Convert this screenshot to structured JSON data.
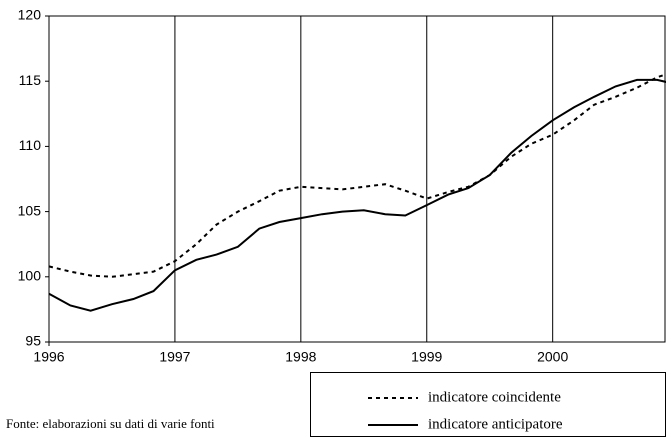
{
  "chart_data": {
    "type": "line",
    "x": [
      1996,
      1996.17,
      1996.33,
      1996.5,
      1996.67,
      1996.83,
      1997,
      1997.17,
      1997.33,
      1997.5,
      1997.67,
      1997.83,
      1998,
      1998.17,
      1998.33,
      1998.5,
      1998.67,
      1998.83,
      1999,
      1999.17,
      1999.33,
      1999.5,
      1999.67,
      1999.83,
      2000,
      2000.17,
      2000.33,
      2000.5,
      2000.67,
      2000.83,
      2000.92
    ],
    "series": [
      {
        "name": "indicatore coincidente",
        "color": "#000000",
        "linestyle": "dotted",
        "values": [
          100.8,
          100.4,
          100.1,
          100.0,
          100.2,
          100.4,
          101.2,
          102.5,
          104.0,
          105.0,
          105.8,
          106.6,
          106.9,
          106.8,
          106.7,
          106.9,
          107.1,
          106.6,
          106.0,
          106.5,
          106.9,
          107.8,
          109.2,
          110.2,
          110.9,
          112.0,
          113.2,
          113.8,
          114.5,
          115.3,
          115.6
        ]
      },
      {
        "name": "indicatore anticipatore",
        "color": "#000000",
        "linestyle": "solid",
        "values": [
          98.7,
          97.8,
          97.4,
          97.9,
          98.3,
          98.9,
          100.5,
          101.3,
          101.7,
          102.3,
          103.7,
          104.2,
          104.5,
          104.8,
          105.0,
          105.1,
          104.8,
          104.7,
          105.5,
          106.3,
          106.8,
          107.8,
          109.5,
          110.8,
          112.0,
          113.0,
          113.8,
          114.6,
          115.1,
          115.1,
          114.9
        ]
      }
    ],
    "xlim": [
      1996,
      2000.9
    ],
    "xticks": [
      1996,
      1997,
      1998,
      1999,
      2000
    ],
    "ylim": [
      95,
      120
    ],
    "yticks": [
      95,
      100,
      105,
      110,
      115,
      120
    ],
    "grid": true,
    "legend": "bottom-right",
    "note": "Fonte: elaborazioni su dati di varie fonti"
  }
}
